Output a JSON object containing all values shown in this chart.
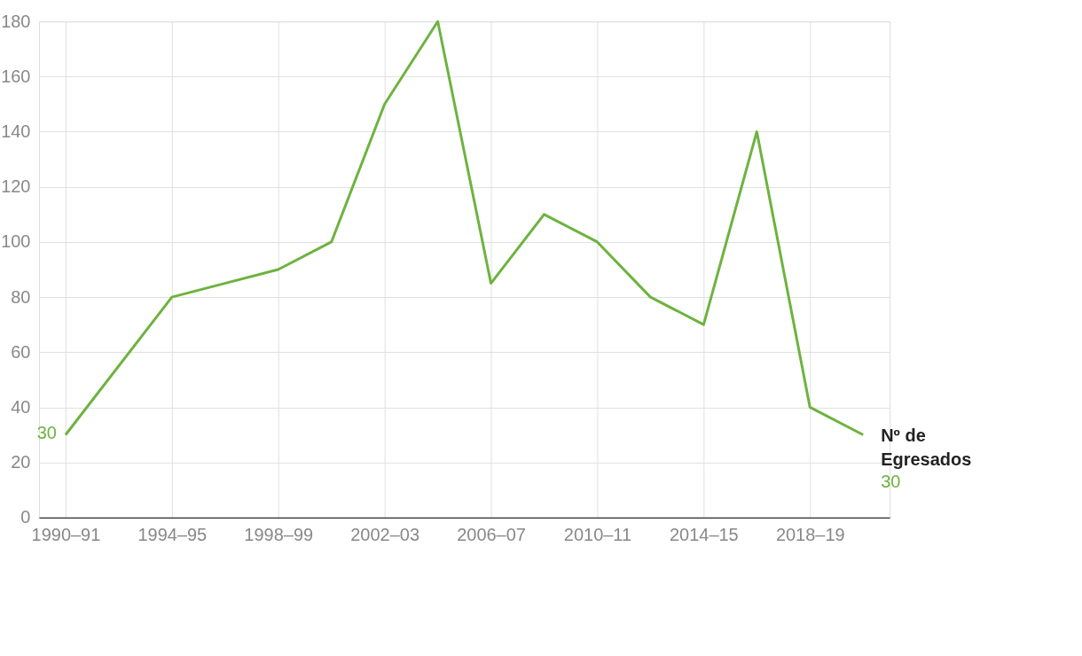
{
  "chart_data": {
    "type": "line",
    "categories": [
      "1990–91",
      null,
      "1994–95",
      null,
      "1998–99",
      null,
      "2002–03",
      null,
      "2006–07",
      null,
      "2010–11",
      null,
      "2014–15",
      null,
      "2018–19",
      null
    ],
    "series": [
      {
        "name": "Nº de Egresados",
        "color": "#6db33f",
        "values": [
          30,
          null,
          80,
          null,
          90,
          100,
          150,
          180,
          85,
          110,
          100,
          80,
          70,
          140,
          40,
          30
        ],
        "value_labels": [
          "30",
          null,
          null,
          null,
          null,
          null,
          null,
          null,
          null,
          null,
          null,
          null,
          null,
          null,
          null,
          "30"
        ]
      }
    ],
    "ylim": [
      0,
      180
    ],
    "yticks": [
      0,
      20,
      40,
      60,
      80,
      100,
      120,
      140,
      160,
      180
    ],
    "grid": true,
    "marker": "none",
    "line_style": "solid"
  }
}
